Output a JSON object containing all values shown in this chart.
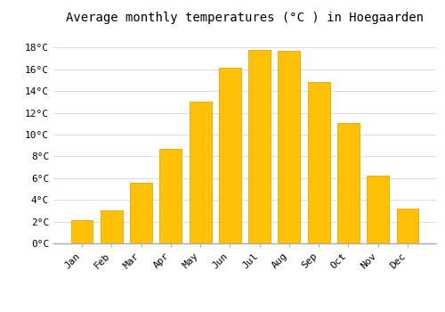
{
  "title": "Average monthly temperatures (°C ) in Hoegaarden",
  "months": [
    "Jan",
    "Feb",
    "Mar",
    "Apr",
    "May",
    "Jun",
    "Jul",
    "Aug",
    "Sep",
    "Oct",
    "Nov",
    "Dec"
  ],
  "temperatures": [
    2.1,
    3.0,
    5.6,
    8.7,
    13.0,
    16.1,
    17.8,
    17.7,
    14.8,
    11.1,
    6.2,
    3.2
  ],
  "bar_color": "#FFC107",
  "bar_edge_color": "#E5A800",
  "background_color": "#ffffff",
  "plot_bg_color": "#ffffff",
  "grid_color": "#dddddd",
  "ytick_labels": [
    "0°C",
    "2°C",
    "4°C",
    "6°C",
    "8°C",
    "10°C",
    "12°C",
    "14°C",
    "16°C",
    "18°C"
  ],
  "ytick_values": [
    0,
    2,
    4,
    6,
    8,
    10,
    12,
    14,
    16,
    18
  ],
  "ylim": [
    0,
    19.5
  ],
  "title_fontsize": 10,
  "tick_fontsize": 8,
  "font_family": "monospace",
  "bar_width": 0.75
}
